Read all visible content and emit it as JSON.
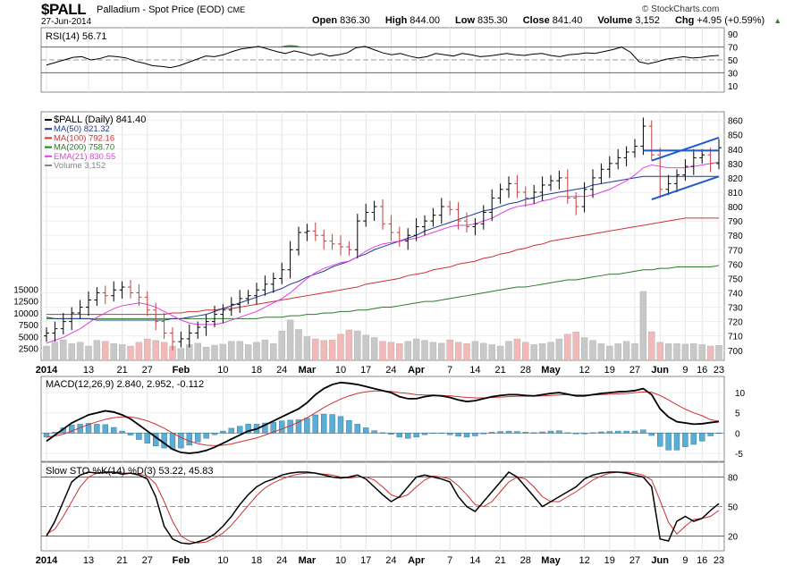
{
  "header": {
    "symbol": "$PALL",
    "description": "Palladium - Spot Price (EOD)",
    "exchange": "CME",
    "date": "27-Jun-2014",
    "watermark": "© StockCharts.com",
    "open_label": "Open",
    "open": "836.30",
    "high_label": "High",
    "high": "844.00",
    "low_label": "Low",
    "low": "835.30",
    "close_label": "Close",
    "close": "841.40",
    "volume_label": "Volume",
    "volume": "3,152",
    "chg_label": "Chg",
    "chg": "+4.95 (+0.59%)",
    "chg_arrow": "▲"
  },
  "colors": {
    "price_bar": "#000000",
    "ma50": "#1f3a93",
    "ma100": "#d03030",
    "ma200": "#2a7a2a",
    "ema21": "#e040e0",
    "volume_up": "#c8c8c8",
    "volume_down": "#f3b8b8",
    "macd_line": "#000000",
    "signal_line": "#d03030",
    "histogram": "#5aaed6",
    "trendline": "#1f5bd0",
    "rsi_overbought_fill": "#4a7a4a"
  },
  "chart_data": [
    {
      "type": "line",
      "panel": "rsi",
      "legend": "RSI(14) 56.71",
      "y_ticks": [
        "90",
        "70",
        "50",
        "30",
        "10"
      ],
      "ylim": [
        0,
        100
      ],
      "values": [
        42,
        46,
        50,
        54,
        55,
        50,
        52,
        56,
        55,
        53,
        48,
        45,
        41,
        40,
        38,
        41,
        46,
        51,
        56,
        55,
        58,
        63,
        67,
        69,
        71,
        67,
        63,
        60,
        64,
        61,
        57,
        60,
        56,
        58,
        61,
        69,
        71,
        66,
        61,
        58,
        60,
        56,
        53,
        55,
        60,
        58,
        56,
        60,
        58,
        55,
        56,
        58,
        60,
        58,
        57,
        59,
        60,
        57,
        55,
        58,
        59,
        61,
        60,
        63,
        66,
        70,
        62,
        47,
        44,
        47,
        51,
        53,
        55,
        53,
        54,
        56,
        57
      ]
    },
    {
      "type": "line",
      "panel": "price",
      "legend": [
        "$PALL (Daily) 841.40",
        "MA(50) 821.32",
        "MA(100) 792.16",
        "MA(200) 758.70",
        "EMA(21) 830.55",
        "Volume 3,152"
      ],
      "y_ticks": [
        "860",
        "850",
        "840",
        "830",
        "820",
        "810",
        "800",
        "790",
        "780",
        "770",
        "760",
        "750",
        "740",
        "730",
        "720",
        "710",
        "700"
      ],
      "volume_ticks": [
        "15000",
        "12500",
        "10000",
        "7500",
        "5000",
        "2500"
      ],
      "ylim": [
        693,
        866
      ],
      "close": [
        712,
        715,
        720,
        726,
        730,
        735,
        740,
        738,
        742,
        744,
        740,
        737,
        728,
        720,
        712,
        706,
        708,
        712,
        716,
        720,
        725,
        728,
        732,
        736,
        738,
        742,
        746,
        750,
        756,
        770,
        782,
        783,
        780,
        776,
        774,
        772,
        770,
        790,
        796,
        800,
        788,
        782,
        776,
        780,
        786,
        790,
        794,
        800,
        798,
        790,
        786,
        788,
        796,
        806,
        812,
        816,
        810,
        806,
        810,
        815,
        818,
        820,
        806,
        800,
        812,
        820,
        826,
        830,
        834,
        838,
        842,
        856,
        836,
        812,
        816,
        822,
        828,
        834,
        836,
        830,
        841
      ],
      "ma50": [
        723,
        722,
        722,
        722,
        722,
        722,
        721,
        721,
        721,
        721,
        721,
        721,
        721,
        721,
        721,
        722,
        722,
        723,
        724,
        725,
        727,
        729,
        731,
        733,
        735,
        737,
        739,
        741,
        743,
        746,
        748,
        751,
        753,
        755,
        758,
        760,
        762,
        765,
        767,
        770,
        772,
        774,
        776,
        778,
        780,
        783,
        785,
        787,
        789,
        791,
        793,
        795,
        797,
        798,
        800,
        802,
        803,
        805,
        806,
        808,
        809,
        810,
        811,
        812,
        813,
        815,
        816,
        817,
        818,
        819,
        820,
        821,
        821,
        821,
        821,
        821,
        821,
        821,
        821,
        821,
        821
      ],
      "ma100": [
        725,
        725,
        725,
        725,
        725,
        725,
        725,
        725,
        725,
        725,
        725,
        725,
        725,
        725,
        725,
        726,
        726,
        727,
        727,
        728,
        728,
        729,
        729,
        730,
        731,
        732,
        733,
        734,
        735,
        736,
        737,
        738,
        739,
        740,
        741,
        742,
        743,
        744,
        746,
        747,
        748,
        749,
        750,
        752,
        753,
        754,
        756,
        757,
        758,
        760,
        761,
        762,
        764,
        765,
        767,
        768,
        770,
        771,
        773,
        774,
        776,
        777,
        778,
        779,
        780,
        781,
        782,
        783,
        784,
        785,
        786,
        787,
        788,
        789,
        790,
        791,
        792,
        792,
        792,
        792,
        792
      ],
      "ma200": [
        722,
        722,
        722,
        722,
        722,
        722,
        722,
        722,
        722,
        722,
        722,
        722,
        722,
        722,
        722,
        722,
        722,
        722,
        722,
        722,
        722,
        722,
        722,
        722,
        722,
        722,
        723,
        723,
        723,
        724,
        724,
        725,
        725,
        726,
        726,
        727,
        727,
        728,
        728,
        729,
        730,
        730,
        731,
        732,
        733,
        734,
        734,
        735,
        736,
        737,
        738,
        739,
        740,
        741,
        742,
        743,
        744,
        744,
        745,
        746,
        747,
        748,
        749,
        749,
        750,
        751,
        752,
        753,
        753,
        754,
        755,
        756,
        756,
        757,
        757,
        758,
        758,
        758,
        758,
        758,
        759
      ],
      "ema21": [
        705,
        707,
        709,
        712,
        715,
        719,
        723,
        726,
        729,
        731,
        732,
        733,
        732,
        730,
        727,
        724,
        721,
        719,
        718,
        718,
        718,
        719,
        721,
        723,
        725,
        727,
        730,
        733,
        736,
        740,
        745,
        750,
        754,
        757,
        759,
        761,
        762,
        765,
        769,
        772,
        774,
        775,
        776,
        777,
        778,
        780,
        782,
        784,
        786,
        787,
        787,
        788,
        790,
        792,
        795,
        798,
        800,
        801,
        802,
        804,
        805,
        807,
        807,
        807,
        807,
        808,
        810,
        812,
        815,
        818,
        822,
        827,
        829,
        828,
        827,
        827,
        827,
        828,
        829,
        830,
        831
      ],
      "volume": [
        3000,
        3800,
        4300,
        3500,
        3800,
        3000,
        4200,
        4000,
        3500,
        3300,
        3000,
        3800,
        4500,
        4200,
        3800,
        3000,
        2500,
        3300,
        3600,
        2800,
        3200,
        3400,
        4000,
        4000,
        3300,
        3800,
        4300,
        3500,
        6200,
        8500,
        6500,
        5000,
        4500,
        4200,
        4300,
        5500,
        6400,
        6200,
        5300,
        4800,
        4000,
        3800,
        3500,
        4000,
        4500,
        4200,
        3800,
        3600,
        4300,
        3800,
        3500,
        4000,
        3600,
        3300,
        3000,
        4000,
        4500,
        3800,
        3300,
        3500,
        3800,
        4500,
        5500,
        6000,
        4800,
        4200,
        3500,
        3000,
        3500,
        4000,
        3500,
        14500,
        6000,
        3800,
        3500,
        3500,
        3400,
        3500,
        3300,
        3000,
        3152
      ],
      "months": [
        "2014",
        "13",
        "21",
        "27",
        "Feb",
        "10",
        "18",
        "24",
        "Mar",
        "10",
        "17",
        "24",
        "Apr",
        "7",
        "14",
        "21",
        "28",
        "May",
        "12",
        "19",
        "27",
        "Jun",
        "9",
        "16",
        "23"
      ]
    },
    {
      "type": "line",
      "panel": "macd",
      "legend": "MACD(12,26,9) 2.840, 2.952, -0.112",
      "y_ticks": [
        "10",
        "5",
        "0",
        "-5"
      ],
      "ylim": [
        -7,
        14
      ],
      "macd": [
        -2,
        -0.5,
        1,
        2.5,
        3.5,
        4.5,
        5,
        5.5,
        5.2,
        4.5,
        3.5,
        2,
        0.5,
        -1,
        -2.5,
        -4,
        -4.8,
        -5,
        -4.8,
        -4.3,
        -3.5,
        -2.5,
        -1.5,
        -0.5,
        0.5,
        1,
        2,
        3,
        4,
        5,
        6,
        7.5,
        9.5,
        11,
        12,
        12.5,
        12.3,
        12,
        11.5,
        11,
        10.5,
        10,
        9,
        8.5,
        8.5,
        9,
        9.3,
        9.2,
        8.8,
        8.2,
        7.8,
        8,
        8.5,
        9,
        9.3,
        9.5,
        9.5,
        9.3,
        9.2,
        9.5,
        9.8,
        10,
        9.6,
        9.2,
        9.2,
        9.5,
        9.8,
        10,
        10.2,
        10.3,
        10.5,
        11,
        9.5,
        6,
        4,
        2.8,
        2.5,
        2.2,
        2.3,
        2.6,
        2.84
      ],
      "signal": [
        -1,
        -0.7,
        -0.3,
        0.5,
        1.3,
        2.1,
        2.8,
        3.4,
        3.8,
        4,
        4,
        3.6,
        3,
        2.2,
        1.2,
        0,
        -1.1,
        -2,
        -2.6,
        -3,
        -3.1,
        -3,
        -2.7,
        -2.2,
        -1.7,
        -1.2,
        -0.5,
        0.3,
        1,
        1.8,
        2.7,
        3.8,
        5,
        6.3,
        7.4,
        8.4,
        9.2,
        9.8,
        10.2,
        10.4,
        10.4,
        10.3,
        10,
        9.8,
        9.5,
        9.4,
        9.4,
        9.3,
        9.2,
        9,
        8.8,
        8.7,
        8.7,
        8.8,
        8.9,
        9,
        9.1,
        9.1,
        9.1,
        9.2,
        9.3,
        9.4,
        9.5,
        9.4,
        9.4,
        9.4,
        9.5,
        9.6,
        9.7,
        9.8,
        10,
        10.2,
        10.1,
        9.3,
        8.2,
        7,
        5.9,
        5,
        4.3,
        3.3,
        2.952
      ]
    },
    {
      "type": "line",
      "panel": "stochastic",
      "legend": "Slow STO %K(14) %D(3) 53.22, 45.83",
      "y_ticks": [
        "80",
        "50",
        "20"
      ],
      "ylim": [
        5,
        95
      ],
      "k": [
        20,
        35,
        55,
        75,
        82,
        85,
        84,
        85,
        85,
        83,
        84,
        82,
        78,
        60,
        30,
        17,
        13,
        12,
        14,
        17,
        22,
        30,
        40,
        52,
        62,
        70,
        75,
        78,
        82,
        84,
        85,
        85,
        84,
        82,
        80,
        79,
        80,
        82,
        78,
        70,
        62,
        55,
        60,
        70,
        80,
        82,
        80,
        78,
        75,
        60,
        50,
        45,
        55,
        65,
        75,
        85,
        80,
        70,
        60,
        50,
        55,
        60,
        65,
        70,
        78,
        82,
        84,
        85,
        85,
        84,
        82,
        80,
        70,
        17,
        15,
        35,
        40,
        35,
        38,
        46,
        53
      ],
      "d": [
        22,
        27,
        40,
        55,
        70,
        80,
        84,
        84,
        85,
        84,
        84,
        83,
        81,
        73,
        55,
        35,
        20,
        15,
        13,
        14,
        18,
        23,
        31,
        41,
        51,
        61,
        69,
        74,
        78,
        81,
        83,
        84,
        84,
        83,
        82,
        80,
        79,
        80,
        80,
        77,
        70,
        62,
        59,
        62,
        70,
        77,
        81,
        80,
        78,
        71,
        62,
        52,
        50,
        55,
        65,
        75,
        80,
        78,
        70,
        60,
        55,
        55,
        60,
        65,
        71,
        77,
        81,
        84,
        85,
        85,
        84,
        82,
        77,
        56,
        34,
        22,
        30,
        37,
        38,
        40,
        46
      ]
    }
  ]
}
